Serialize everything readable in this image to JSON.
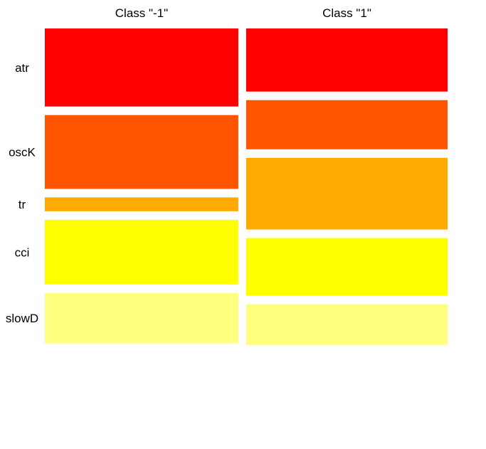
{
  "chart_data": {
    "type": "mosaic",
    "rows": [
      "atr",
      "oscK",
      "tr",
      "cci",
      "slowD"
    ],
    "row_labels": [
      {
        "text": "atr"
      },
      {
        "text": "oscK"
      },
      {
        "text": "tr"
      },
      {
        "text": "cci"
      },
      {
        "text": "slowD"
      }
    ],
    "columns": [
      {
        "name": "Class \"-1\"",
        "width_share": 0.49,
        "proportions": [
          0.2086,
          0.1971,
          0.0371,
          0.1729,
          0.1343
        ]
      },
      {
        "name": "Class \"1\"",
        "width_share": 0.51,
        "proportions": [
          0.1686,
          0.1314,
          0.1914,
          0.1543,
          0.1086
        ]
      }
    ],
    "colors": [
      "#ff0000",
      "#ff5500",
      "#ffaa00",
      "#ffff00",
      "#ffff80"
    ]
  }
}
